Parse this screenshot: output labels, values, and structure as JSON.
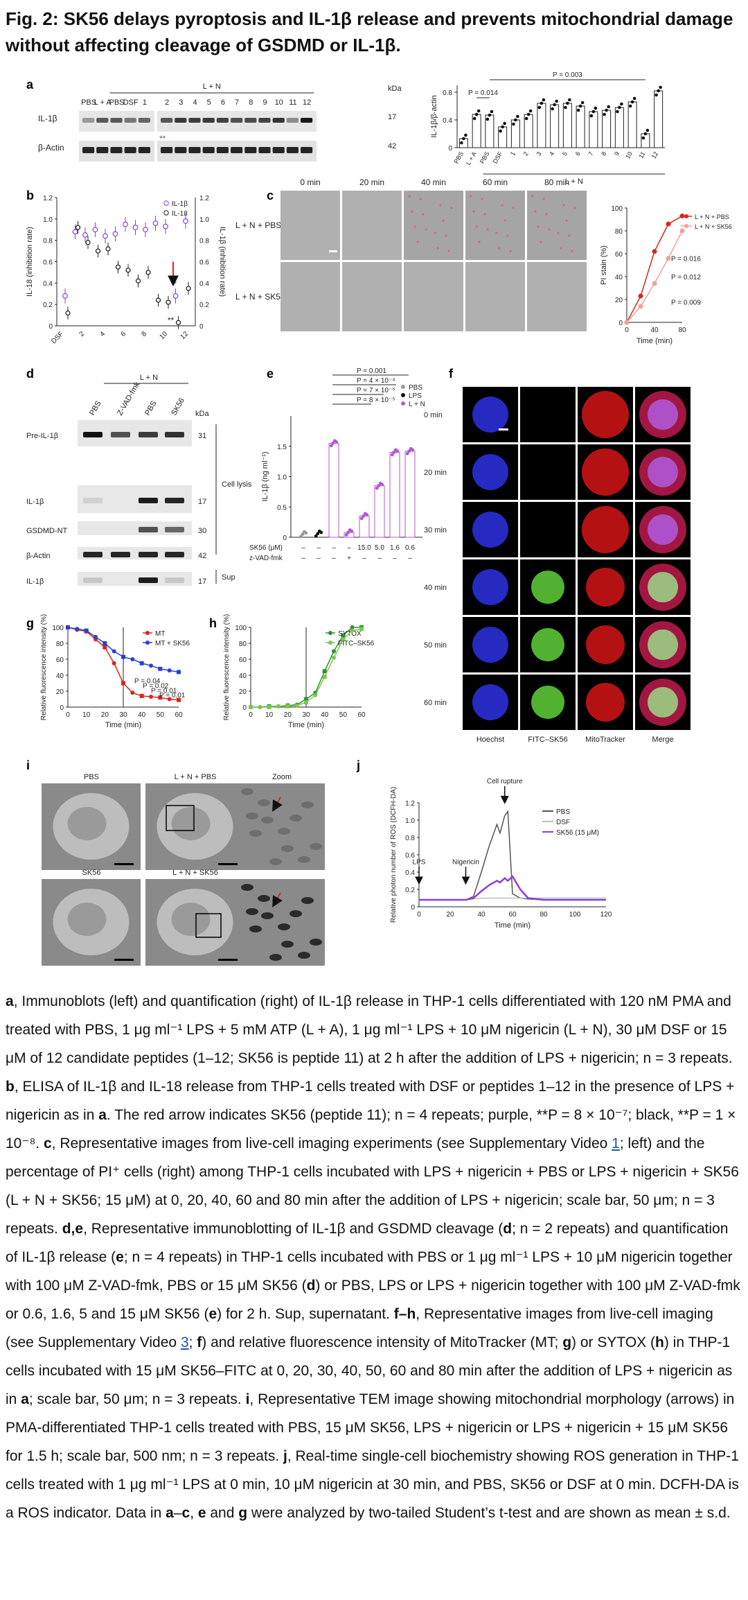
{
  "title": "Fig. 2: SK56 delays pyroptosis and IL-1β release and prevents mitochondrial damage without affecting cleavage of GSDMD or IL-1β.",
  "panel_letters": [
    "a",
    "b",
    "c",
    "d",
    "e",
    "f",
    "g",
    "h",
    "i",
    "j"
  ],
  "panel_a": {
    "group_header": "L + N",
    "lanes": [
      "PBS",
      "L + A",
      "PBS",
      "DSF",
      "1",
      "2",
      "3",
      "4",
      "5",
      "6",
      "7",
      "8",
      "9",
      "10",
      "11",
      "12"
    ],
    "rows": [
      "IL-1β",
      "β-Actin"
    ],
    "kda_header": "kDa",
    "kda": [
      "17",
      "42"
    ]
  },
  "panel_b": {
    "legend": [
      "IL-1β",
      "IL-18"
    ],
    "ylabel_left": "IL-18 (inhibition rate)",
    "ylabel_right": "IL-1β (inhibition rate)",
    "xticks": [
      "DSF",
      "2",
      "4",
      "6",
      "8",
      "10",
      "12"
    ],
    "yticks": [
      "0",
      "0.2",
      "0.4",
      "0.6",
      "0.8",
      "1.0",
      "1.2"
    ],
    "stars": [
      "**",
      "**"
    ]
  },
  "panel_c": {
    "times": [
      "0 min",
      "20 min",
      "40 min",
      "60 min",
      "80 min"
    ],
    "rows": [
      "L + N + PBS",
      "L + N + SK56"
    ]
  },
  "panel_d": {
    "group_header": "L + N",
    "lanes": [
      "PBS",
      "Z-VAD-fmk",
      "PBS",
      "SK56"
    ],
    "kda_header": "kDa",
    "rows": [
      "Pre-IL-1β",
      "IL-1β",
      "GSDMD-NT",
      "β-Actin",
      "IL-1β"
    ],
    "kda": [
      "31",
      "17",
      "30",
      "42",
      "17"
    ],
    "side_labels": [
      "Cell lysis",
      "Sup"
    ]
  },
  "panel_e": {
    "ylabel": "IL-1β (ng ml⁻¹)",
    "yticks": [
      "0",
      "0.5",
      "1.0",
      "1.5"
    ],
    "pvalues": [
      "P = 0.001",
      "P = 4 × 10⁻⁴",
      "P = 7 × 10⁻⁵",
      "P = 8 × 10⁻⁵"
    ],
    "legend": [
      "PBS",
      "LPS",
      "L + N"
    ],
    "row1_label": "SK56 (μM)",
    "row1_values": [
      "–",
      "–",
      "–",
      "–",
      "15.0",
      "5.0",
      "1.6",
      "0.6"
    ],
    "row2_label": "z-VAD-fmk",
    "row2_values": [
      "–",
      "–",
      "–",
      "+",
      "–",
      "–",
      "–",
      "–"
    ]
  },
  "panel_f": {
    "times": [
      "0 min",
      "20 min",
      "30 min",
      "40 min",
      "50 min",
      "60 min"
    ],
    "columns": [
      "Hoechst",
      "FITC–SK56",
      "MitoTracker",
      "Merge"
    ]
  },
  "panel_g": {
    "ylabel": "Relative fluorescence intensity (%)",
    "xlabel": "Time (min)",
    "legend": [
      "MT",
      "MT + SK56"
    ],
    "pvalues": [
      "P = 0.04",
      "P = 0.02",
      "P = 0.01",
      "P = 0.01"
    ],
    "xticks": [
      "0",
      "10",
      "20",
      "30",
      "40",
      "50",
      "60"
    ],
    "yticks": [
      "0",
      "20",
      "40",
      "60",
      "80",
      "100"
    ]
  },
  "panel_h": {
    "ylabel": "Relative fluorescence intensity (%)",
    "xlabel": "Time (min)",
    "legend": [
      "SYTOX",
      "FITC–SK56"
    ],
    "xticks": [
      "0",
      "10",
      "20",
      "30",
      "40",
      "50",
      "60"
    ],
    "yticks": [
      "0",
      "20",
      "40",
      "60",
      "80",
      "100"
    ]
  },
  "panel_i": {
    "labels": [
      "PBS",
      "L + N + PBS",
      "Zoom",
      "SK56",
      "L + N + SK56"
    ]
  },
  "panel_j": {
    "ylabel": "Relative photon number of ROS (DCFH-DA)",
    "xlabel": "Time (min)",
    "legend": [
      "PBS",
      "DSF",
      "SK56 (15 μM)"
    ],
    "annotations": [
      "LPS",
      "Nigericin",
      "Cell rupture"
    ],
    "xticks": [
      "0",
      "20",
      "40",
      "60",
      "80",
      "100",
      "120"
    ],
    "yticks": [
      "0",
      "0.2",
      "0.4",
      "0.6",
      "0.8",
      "1.0",
      "1.2"
    ]
  },
  "chart_data": [
    {
      "panel": "a-right",
      "type": "bar",
      "ylabel": "IL-1β/β-actin",
      "group_label": "L + N",
      "categories": [
        "PBS",
        "L + A",
        "PBS",
        "DSF",
        "1",
        "2",
        "3",
        "4",
        "5",
        "6",
        "7",
        "8",
        "9",
        "10",
        "11",
        "12"
      ],
      "values": [
        0.13,
        0.48,
        0.47,
        0.3,
        0.4,
        0.48,
        0.64,
        0.62,
        0.64,
        0.6,
        0.52,
        0.54,
        0.58,
        0.66,
        0.2,
        0.82
      ],
      "ylim": [
        0,
        0.9
      ],
      "yticks": [
        "0",
        "0.4",
        "0.8"
      ],
      "annotations": [
        "P = 0.014",
        "P = 0.003"
      ]
    },
    {
      "panel": "c-right",
      "type": "line",
      "ylabel": "PI stain (%)",
      "xlabel": "Time (min)",
      "x": [
        0,
        20,
        40,
        60,
        80
      ],
      "xticks": [
        "0",
        "40",
        "80"
      ],
      "yticks": [
        "0",
        "20",
        "40",
        "60",
        "80",
        "100"
      ],
      "ylim": [
        0,
        100
      ],
      "series": [
        {
          "name": "L + N + PBS",
          "values": [
            0,
            23,
            62,
            86,
            93
          ],
          "color": "#d9261c"
        },
        {
          "name": "L + N + SK56",
          "values": [
            0,
            14,
            34,
            56,
            80
          ],
          "color": "#f0a0a0"
        }
      ],
      "annotations": [
        "P = 0.016",
        "P = 0.012",
        "P = 0.009"
      ]
    },
    {
      "panel": "e",
      "type": "scatter",
      "ylabel": "IL-1β (ng ml⁻¹)",
      "values": [
        0.05,
        0.06,
        1.55,
        0.08,
        0.35,
        0.85,
        1.4,
        1.42
      ],
      "ylim": [
        0,
        2.0
      ]
    },
    {
      "panel": "g",
      "type": "line",
      "xlabel": "Time (min)",
      "ylabel": "Relative fluorescence intensity (%)",
      "x": [
        0,
        5,
        10,
        15,
        20,
        25,
        30,
        35,
        40,
        45,
        50,
        55,
        60
      ],
      "ylim": [
        0,
        100
      ],
      "series": [
        {
          "name": "MT",
          "values": [
            100,
            97,
            95,
            85,
            75,
            55,
            30,
            18,
            14,
            13,
            12,
            10,
            9
          ],
          "color": "#d9261c"
        },
        {
          "name": "MT + SK56",
          "values": [
            100,
            98,
            96,
            88,
            80,
            70,
            63,
            60,
            55,
            52,
            48,
            46,
            44
          ],
          "color": "#2a3fd6"
        }
      ]
    },
    {
      "panel": "h",
      "type": "line",
      "xlabel": "Time (min)",
      "ylabel": "Relative fluorescence intensity (%)",
      "x": [
        0,
        5,
        10,
        15,
        20,
        25,
        30,
        35,
        40,
        45,
        50,
        55,
        60
      ],
      "ylim": [
        0,
        100
      ],
      "series": [
        {
          "name": "SYTOX",
          "values": [
            0,
            0,
            1,
            1,
            2,
            3,
            10,
            18,
            45,
            70,
            90,
            100,
            100
          ],
          "color": "#2f8f2f"
        },
        {
          "name": "FITC–SK56",
          "values": [
            0,
            0,
            0,
            1,
            1,
            2,
            6,
            15,
            38,
            62,
            85,
            96,
            98
          ],
          "color": "#7ac74f"
        }
      ]
    },
    {
      "panel": "j",
      "type": "line",
      "xlabel": "Time (min)",
      "ylabel": "Relative photon number of ROS (DCFH-DA)",
      "x": [
        0,
        10,
        20,
        30,
        35,
        40,
        45,
        50,
        52,
        55,
        57,
        60,
        65,
        70,
        80,
        90,
        100,
        110,
        120
      ],
      "ylim": [
        0,
        1.2
      ],
      "series": [
        {
          "name": "PBS",
          "values": [
            0.08,
            0.08,
            0.08,
            0.08,
            0.12,
            0.4,
            0.7,
            0.95,
            0.85,
            1.05,
            1.1,
            0.15,
            0.1,
            0.09,
            0.08,
            0.08,
            0.08,
            0.08,
            0.08
          ],
          "color": "#555555"
        },
        {
          "name": "DSF",
          "values": [
            0.08,
            0.08,
            0.08,
            0.08,
            0.09,
            0.1,
            0.1,
            0.1,
            0.1,
            0.1,
            0.1,
            0.1,
            0.1,
            0.1,
            0.1,
            0.1,
            0.1,
            0.1,
            0.1
          ],
          "color": "#bfbfbf"
        },
        {
          "name": "SK56 (15 μM)",
          "values": [
            0.08,
            0.08,
            0.08,
            0.08,
            0.1,
            0.18,
            0.25,
            0.3,
            0.28,
            0.33,
            0.3,
            0.35,
            0.2,
            0.1,
            0.08,
            0.08,
            0.08,
            0.08,
            0.08
          ],
          "color": "#8a3fd6"
        }
      ]
    }
  ],
  "caption": [
    {
      "t": "a",
      "b": true
    },
    {
      "t": ", Immunoblots (left) and quantification (right) of IL-1β release in THP-1 cells differentiated with 120 nM PMA and treated with PBS, 1 μg ml⁻¹ LPS + 5 mM ATP (L + A), 1 μg ml⁻¹ LPS + 10 μM nigericin (L + N), 30 μM DSF or 15 μM of 12 candidate peptides (1–12; SK56 is peptide 11) at 2 h after the addition of LPS + nigericin; n = 3 repeats. "
    },
    {
      "t": "b",
      "b": true
    },
    {
      "t": ", ELISA of IL-1β and IL-18 release from THP-1 cells treated with DSF or peptides 1–12 in the presence of LPS + nigericin as in "
    },
    {
      "t": "a",
      "b": true
    },
    {
      "t": ". The red arrow indicates SK56 (peptide 11); n = 4 repeats; purple, **P = 8 × 10⁻⁷; black, **P = 1 × 10⁻⁸. "
    },
    {
      "t": "c",
      "b": true
    },
    {
      "t": ", Representative images from live-cell imaging experiments (see Supplementary Video "
    },
    {
      "t": "1",
      "l": true
    },
    {
      "t": "; left) and the percentage of PI⁺ cells (right) among THP-1 cells incubated with LPS + nigericin + PBS or LPS + nigericin + SK56 (L + N + SK56; 15 μM) at 0, 20, 40, 60 and 80 min after the addition of LPS + nigericin; scale bar, 50 μm; n = 3 repeats. "
    },
    {
      "t": "d,e",
      "b": true
    },
    {
      "t": ", Representative immunoblotting of IL-1β and GSDMD cleavage ("
    },
    {
      "t": "d",
      "b": true
    },
    {
      "t": "; n = 2 repeats) and quantification of IL-1β release ("
    },
    {
      "t": "e",
      "b": true
    },
    {
      "t": "; n = 4 repeats) in THP-1 cells incubated with PBS or 1 μg ml⁻¹ LPS + 10 μM nigericin together with 100 μM Z-VAD-fmk, PBS or 15 μM SK56 ("
    },
    {
      "t": "d",
      "b": true
    },
    {
      "t": ") or PBS, LPS or LPS + nigericin together with 100 μM Z-VAD-fmk or 0.6, 1.6, 5 and 15 μM SK56 ("
    },
    {
      "t": "e",
      "b": true
    },
    {
      "t": ") for 2 h. Sup, supernatant. "
    },
    {
      "t": "f–h",
      "b": true
    },
    {
      "t": ", Representative images from live-cell imaging (see Supplementary Video "
    },
    {
      "t": "3",
      "l": true
    },
    {
      "t": "; "
    },
    {
      "t": "f",
      "b": true
    },
    {
      "t": ") and relative fluorescence intensity of MitoTracker (MT; "
    },
    {
      "t": "g",
      "b": true
    },
    {
      "t": ") or SYTOX ("
    },
    {
      "t": "h",
      "b": true
    },
    {
      "t": ") in THP-1 cells incubated with 15 μM SK56–FITC at 0, 20, 30, 40, 50, 60 and 80 min after the addition of LPS + nigericin as in "
    },
    {
      "t": "a",
      "b": true
    },
    {
      "t": "; scale bar, 50 μm; n = 3 repeats. "
    },
    {
      "t": "i",
      "b": true
    },
    {
      "t": ", Representative TEM image showing mitochondrial morphology (arrows) in PMA-differentiated THP-1 cells treated with PBS, 15 μM SK56, LPS + nigericin or LPS + nigericin + 15 μM SK56 for 1.5 h; scale bar, 500 nm; n = 3 repeats. "
    },
    {
      "t": "j",
      "b": true
    },
    {
      "t": ", Real-time single-cell biochemistry showing ROS generation in THP-1 cells treated with 1 μg ml⁻¹ LPS at 0 min, 10 μM nigericin at 30 min, and PBS, SK56 or DSF at 0 min. DCFH-DA is a ROS indicator. Data in "
    },
    {
      "t": "a",
      "b": true
    },
    {
      "t": "–"
    },
    {
      "t": "c",
      "b": true
    },
    {
      "t": ", "
    },
    {
      "t": "e",
      "b": true
    },
    {
      "t": " and "
    },
    {
      "t": "g",
      "b": true
    },
    {
      "t": " were analyzed by two-tailed Student’s t-test and are shown as mean ± s.d."
    }
  ]
}
